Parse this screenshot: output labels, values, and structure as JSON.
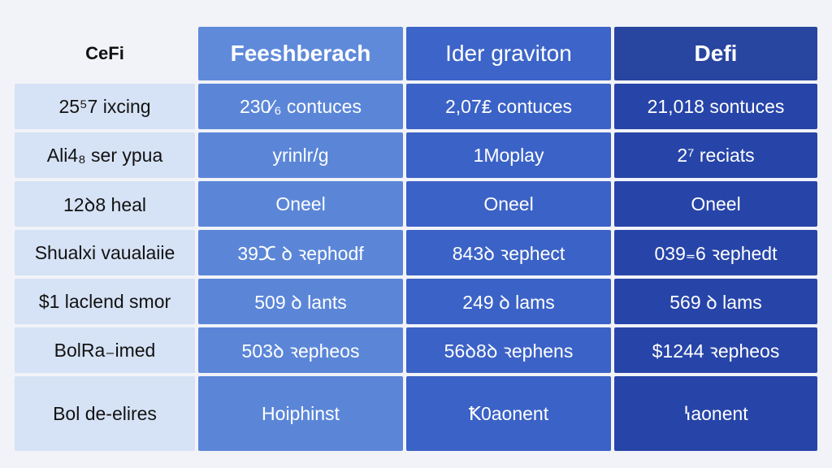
{
  "table": {
    "corner": "CeFi",
    "headers": [
      "Feeshberach",
      "Ider graviton",
      "Defi"
    ],
    "rows": [
      {
        "label": "25⁵7 ixcing",
        "cells": [
          "230⁄₆ contuces",
          "2,07₤ contuces",
          "21,018 sontuces"
        ]
      },
      {
        "label": "Ali4₈ ser ypua",
        "cells": [
          "yrinlr/g",
          "1Moplay",
          "2⁷ reciats"
        ]
      },
      {
        "label": "12ꝺ8 heal",
        "cells": [
          "Oneel",
          "Oneel",
          "Oneel"
        ]
      },
      {
        "label": "Shualxi vaualaiie",
        "cells": [
          "39ⵋ ꝺ ꝛephodf",
          "843ꝺ ꝛephect",
          "039₌6 ꝛephedt"
        ]
      },
      {
        "label": "$1 laclend smor",
        "cells": [
          "509 ꝺ lants",
          "249 ꝺ lams",
          "569 ꝺ lams"
        ]
      },
      {
        "label": "BolRa₋imed",
        "cells": [
          "503ꝺ ꝛepheos",
          "56ꝺ8ꝺ ꝛephens",
          "$1244 ꝛepheos"
        ]
      },
      {
        "label": "Bol de-elires",
        "cells": [
          "Hoiphinst",
          "Ꝁ0aonent",
          "ꝇaonent"
        ]
      }
    ],
    "colors": {
      "col1": "#5b86d8",
      "col2": "#3b62c6",
      "col3": "#2745a8",
      "label_bg": "#d6e2f5",
      "page_bg": "#f1f3f8"
    }
  }
}
